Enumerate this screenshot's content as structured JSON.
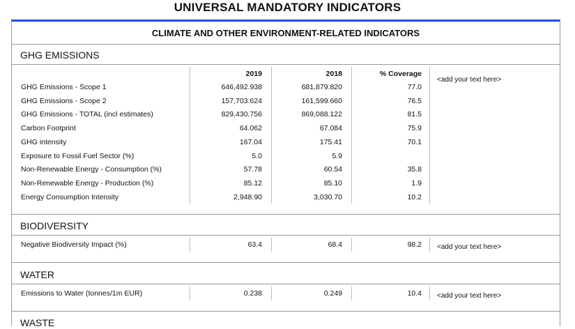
{
  "title": "UNIVERSAL MANDATORY INDICATORS",
  "section_title": "CLIMATE AND OTHER ENVIRONMENT-RELATED INDICATORS",
  "columns": {
    "y1": "2019",
    "y2": "2018",
    "coverage": "% Coverage"
  },
  "ghg": {
    "title": "GHG EMISSIONS",
    "note": "<add your text here>",
    "rows": [
      {
        "label": "GHG Emissions - Scope 1",
        "y1": "646,492.938",
        "y2": "681,879.820",
        "cov": "77.0"
      },
      {
        "label": "GHG Emissions - Scope 2",
        "y1": "157,703.624",
        "y2": "161,599.660",
        "cov": "76.5"
      },
      {
        "label": "GHG Emissions - TOTAL (incl estimates)",
        "y1": "829,430.756",
        "y2": "869,088.122",
        "cov": "81.5"
      },
      {
        "label": "Carbon Footprint",
        "y1": "64.062",
        "y2": "67.084",
        "cov": "75.9"
      },
      {
        "label": "GHG intensity",
        "y1": "167.04",
        "y2": "175.41",
        "cov": "70.1"
      },
      {
        "label": "Exposure to Fossil Fuel Sector (%)",
        "y1": "5.0",
        "y2": "5.9",
        "cov": ""
      },
      {
        "label": "Non-Renewable Energy - Consumption (%)",
        "y1": "57.78",
        "y2": "60.54",
        "cov": "35.8"
      },
      {
        "label": "Non-Renewable Energy - Production (%)",
        "y1": "85.12",
        "y2": "85.10",
        "cov": "1.9"
      },
      {
        "label": "Energy Consumption Intensity",
        "y1": "2,948.90",
        "y2": "3,030.70",
        "cov": "10.2"
      }
    ]
  },
  "biodiversity": {
    "title": "BIODIVERSITY",
    "note": "<add your text here>",
    "row": {
      "label": "Negative Biodiversity Impact (%)",
      "y1": "63.4",
      "y2": "68.4",
      "cov": "98.2"
    }
  },
  "water": {
    "title": "WATER",
    "note": "<add your text here>",
    "row": {
      "label": "Emissions to Water (tonnes/1m EUR)",
      "y1": "0.238",
      "y2": "0.249",
      "cov": "10.4"
    }
  },
  "waste": {
    "title": "WASTE"
  }
}
